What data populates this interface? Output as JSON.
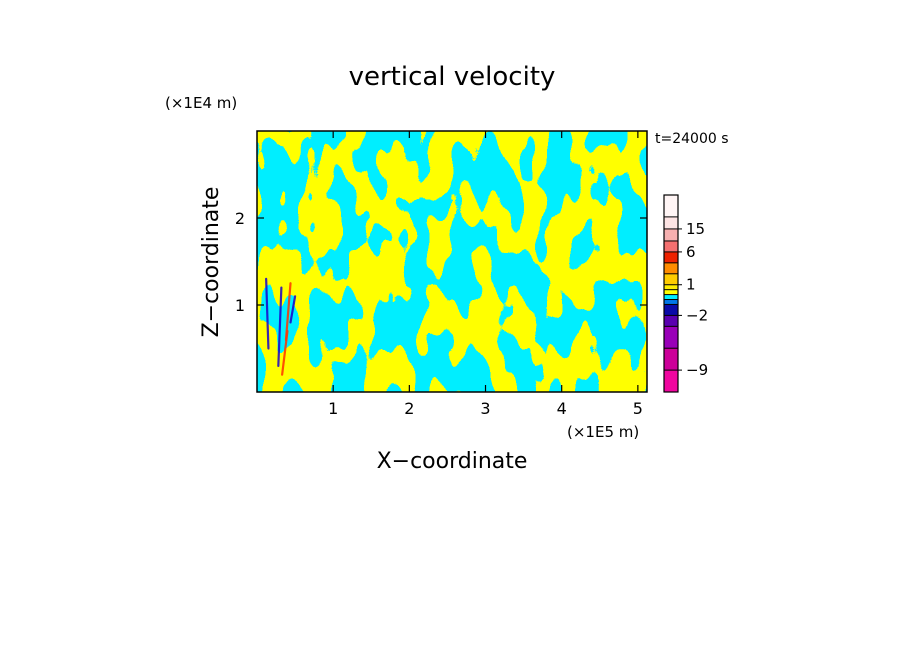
{
  "chart_data": {
    "type": "heatmap",
    "title": "vertical velocity",
    "xlabel": "X−coordinate",
    "ylabel": "Z−coordinate",
    "x_unit": "(×1E5 m)",
    "y_unit": "(×1E4 m)",
    "time_label": "t=24000 s",
    "xlim": [
      0,
      5.12
    ],
    "ylim": [
      0,
      3.0
    ],
    "x_ticks": [
      1,
      2,
      3,
      4,
      5
    ],
    "x_tick_labels": [
      "1",
      "2",
      "3",
      "4",
      "5"
    ],
    "y_ticks": [
      1,
      2
    ],
    "y_tick_labels": [
      "1",
      "2"
    ],
    "colorbar": {
      "levels": [
        -12,
        -9,
        -6,
        -4,
        -2,
        -1,
        -0.5,
        0,
        0.5,
        1,
        2,
        4,
        6,
        10,
        15,
        20,
        25
      ],
      "colors": [
        "#f0069f",
        "#cc0099",
        "#9900b8",
        "#5a00b0",
        "#0a0aa8",
        "#0077e8",
        "#00eeff",
        "#ffff00",
        "#ffee00",
        "#ffcc00",
        "#ff8c00",
        "#ee2200",
        "#f47070",
        "#f6b0b0",
        "#fde4e4",
        "#fff5f5"
      ],
      "tick_labels": [
        {
          "label": "15",
          "value": 15
        },
        {
          "label": "6",
          "value": 6
        },
        {
          "label": "1",
          "value": 1
        },
        {
          "label": "−2",
          "value": -2
        },
        {
          "label": "−9",
          "value": -9
        }
      ]
    },
    "field_colors": {
      "updraft": "#ffff00",
      "downdraft": "#00eeff",
      "strong_up": "#ff3300",
      "strong_down": "#1a00cc"
    },
    "grid": false
  }
}
